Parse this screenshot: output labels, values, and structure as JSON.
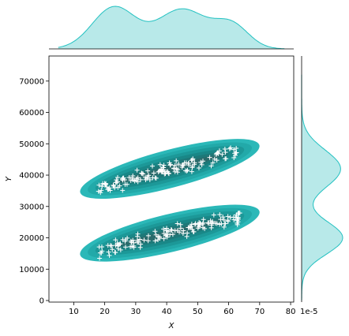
{
  "chart_data": {
    "type": "scatter",
    "kind": "jointplot-kde",
    "xlabel": "X",
    "ylabel": "Y",
    "xlim": [
      2,
      81
    ],
    "ylim": [
      -500,
      78000
    ],
    "x_ticks": [
      10,
      20,
      30,
      40,
      50,
      60,
      70,
      80
    ],
    "y_ticks": [
      0,
      10000,
      20000,
      30000,
      40000,
      50000,
      60000,
      70000
    ],
    "marginal_scale_label": "1e-5",
    "colors": {
      "kde_levels": [
        "#2bb8b8",
        "#22a9a9",
        "#1c9898",
        "#198787",
        "#1e7878",
        "#2a6b6b"
      ],
      "marginal_fill": "#b8e9e9",
      "marginal_line": "#22c1c1",
      "marker": "#ffffff"
    },
    "clusters": [
      {
        "name": "upper",
        "x_range": [
          18,
          64
        ],
        "y_at_x18": 36000,
        "y_at_x64": 48000,
        "kde_core": {
          "x": [
            21,
            60
          ],
          "y": [
            38000,
            46000
          ]
        }
      },
      {
        "name": "lower",
        "x_range": [
          18,
          64
        ],
        "y_at_x18": 16000,
        "y_at_x64": 27000,
        "kde_core": {
          "x": [
            21,
            60
          ],
          "y": [
            18000,
            25000
          ]
        }
      }
    ],
    "marginal_x": {
      "peaks": [
        23,
        45,
        61
      ],
      "range": [
        5,
        78
      ]
    },
    "marginal_y": {
      "peaks": [
        20000,
        42000
      ],
      "trough": 31000,
      "range": [
        0,
        72000
      ]
    }
  }
}
